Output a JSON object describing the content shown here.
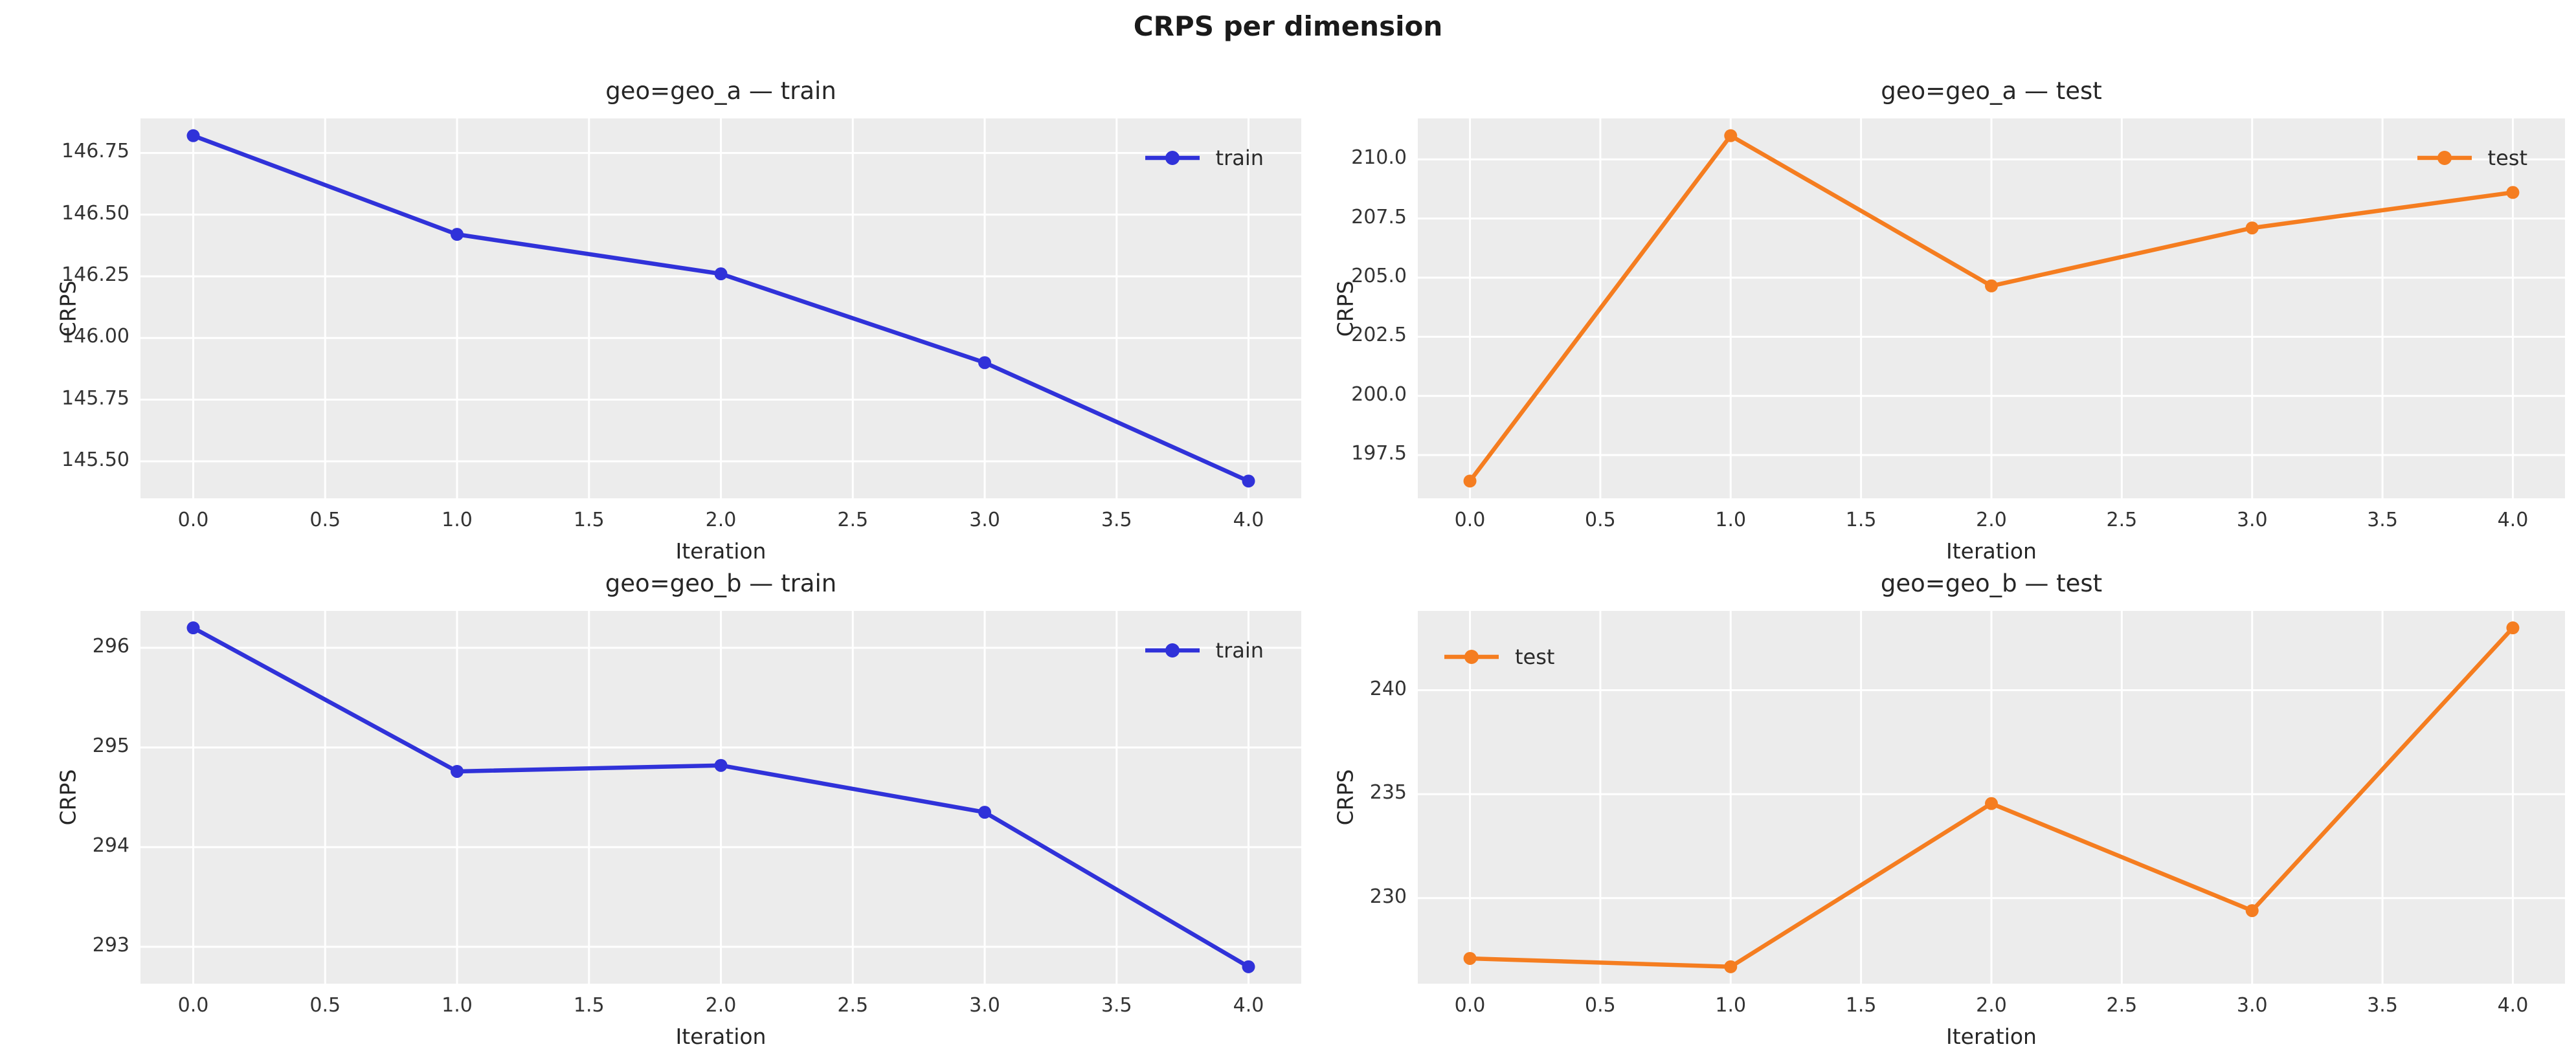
{
  "figure": {
    "suptitle": "CRPS per dimension",
    "background": "#ffffff",
    "axes_background": "#ececec",
    "grid_color": "#ffffff",
    "title_color": "#1a1a1a",
    "text_color": "#262626",
    "train_color": "#3032d9",
    "test_color": "#f57d20"
  },
  "chart_data": [
    {
      "type": "line",
      "title": "geo=geo_a — train",
      "xlabel": "Iteration",
      "ylabel": "CRPS",
      "legend_position": "top-right",
      "grid": true,
      "xlim": [
        -0.2,
        4.2
      ],
      "xticks": {
        "values": [
          0,
          0.5,
          1,
          1.5,
          2,
          2.5,
          3,
          3.5,
          4
        ],
        "labels": [
          "0.0",
          "0.5",
          "1.0",
          "1.5",
          "2.0",
          "2.5",
          "3.0",
          "3.5",
          "4.0"
        ]
      },
      "yticks": {
        "values": [
          145.5,
          145.75,
          146.0,
          146.25,
          146.5,
          146.75
        ],
        "labels": [
          "145.50",
          "145.75",
          "146.00",
          "146.25",
          "146.50",
          "146.75"
        ]
      },
      "series": [
        {
          "name": "train",
          "color": "#3032d9",
          "x": [
            0,
            1,
            2,
            3,
            4
          ],
          "values": [
            146.82,
            146.42,
            146.26,
            145.9,
            145.42
          ]
        }
      ]
    },
    {
      "type": "line",
      "title": "geo=geo_a — test",
      "xlabel": "Iteration",
      "ylabel": "CRPS",
      "legend_position": "top-right",
      "grid": true,
      "xlim": [
        -0.2,
        4.2
      ],
      "xticks": {
        "values": [
          0,
          0.5,
          1,
          1.5,
          2,
          2.5,
          3,
          3.5,
          4
        ],
        "labels": [
          "0.0",
          "0.5",
          "1.0",
          "1.5",
          "2.0",
          "2.5",
          "3.0",
          "3.5",
          "4.0"
        ]
      },
      "yticks": {
        "values": [
          197.5,
          200.0,
          202.5,
          205.0,
          207.5,
          210.0
        ],
        "labels": [
          "197.5",
          "200.0",
          "202.5",
          "205.0",
          "207.5",
          "210.0"
        ]
      },
      "series": [
        {
          "name": "test",
          "color": "#f57d20",
          "x": [
            0,
            1,
            2,
            3,
            4
          ],
          "values": [
            196.4,
            211.0,
            204.65,
            207.1,
            208.6
          ]
        }
      ]
    },
    {
      "type": "line",
      "title": "geo=geo_b — train",
      "xlabel": "Iteration",
      "ylabel": "CRPS",
      "legend_position": "top-right",
      "grid": true,
      "xlim": [
        -0.2,
        4.2
      ],
      "xticks": {
        "values": [
          0,
          0.5,
          1,
          1.5,
          2,
          2.5,
          3,
          3.5,
          4
        ],
        "labels": [
          "0.0",
          "0.5",
          "1.0",
          "1.5",
          "2.0",
          "2.5",
          "3.0",
          "3.5",
          "4.0"
        ]
      },
      "yticks": {
        "values": [
          293,
          294,
          295,
          296
        ],
        "labels": [
          "293",
          "294",
          "295",
          "296"
        ]
      },
      "series": [
        {
          "name": "train",
          "color": "#3032d9",
          "x": [
            0,
            1,
            2,
            3,
            4
          ],
          "values": [
            296.2,
            294.76,
            294.82,
            294.35,
            292.8
          ]
        }
      ]
    },
    {
      "type": "line",
      "title": "geo=geo_b — test",
      "xlabel": "Iteration",
      "ylabel": "CRPS",
      "legend_position": "top-left",
      "grid": true,
      "xlim": [
        -0.2,
        4.2
      ],
      "xticks": {
        "values": [
          0,
          0.5,
          1,
          1.5,
          2,
          2.5,
          3,
          3.5,
          4
        ],
        "labels": [
          "0.0",
          "0.5",
          "1.0",
          "1.5",
          "2.0",
          "2.5",
          "3.0",
          "3.5",
          "4.0"
        ]
      },
      "yticks": {
        "values": [
          230,
          235,
          240
        ],
        "labels": [
          "230",
          "235",
          "240"
        ]
      },
      "series": [
        {
          "name": "test",
          "color": "#f57d20",
          "x": [
            0,
            1,
            2,
            3,
            4
          ],
          "values": [
            227.1,
            226.7,
            234.55,
            229.4,
            243.0
          ]
        }
      ]
    }
  ]
}
